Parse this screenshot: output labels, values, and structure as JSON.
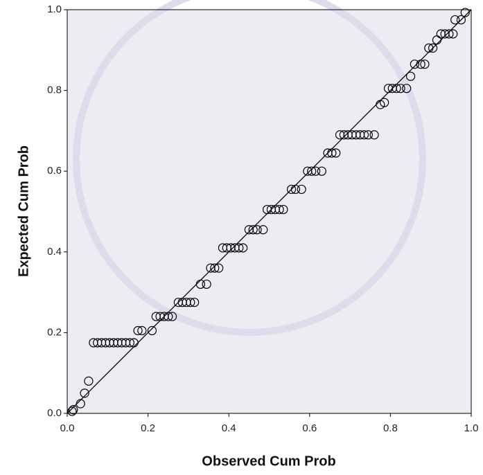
{
  "chart_data": {
    "type": "scatter",
    "x_label": "Observed Cum Prob",
    "y_label": "Expected Cum Prob",
    "x": [
      0.012,
      0.015,
      0.033,
      0.043,
      0.053,
      0.065,
      0.075,
      0.085,
      0.095,
      0.105,
      0.115,
      0.125,
      0.135,
      0.145,
      0.155,
      0.165,
      0.175,
      0.185,
      0.21,
      0.22,
      0.23,
      0.24,
      0.25,
      0.26,
      0.275,
      0.285,
      0.295,
      0.305,
      0.315,
      0.33,
      0.345,
      0.355,
      0.365,
      0.375,
      0.385,
      0.395,
      0.405,
      0.415,
      0.425,
      0.435,
      0.45,
      0.46,
      0.47,
      0.485,
      0.495,
      0.505,
      0.515,
      0.525,
      0.535,
      0.555,
      0.565,
      0.58,
      0.595,
      0.605,
      0.615,
      0.63,
      0.645,
      0.655,
      0.665,
      0.675,
      0.685,
      0.695,
      0.705,
      0.715,
      0.725,
      0.735,
      0.745,
      0.76,
      0.775,
      0.785,
      0.795,
      0.805,
      0.815,
      0.825,
      0.84,
      0.85,
      0.86,
      0.875,
      0.885,
      0.895,
      0.905,
      0.915,
      0.925,
      0.935,
      0.945,
      0.955,
      0.96,
      0.975,
      0.985
    ],
    "values": [
      0.005,
      0.009,
      0.024,
      0.05,
      0.08,
      0.175,
      0.175,
      0.175,
      0.175,
      0.175,
      0.175,
      0.175,
      0.175,
      0.175,
      0.175,
      0.175,
      0.205,
      0.205,
      0.205,
      0.24,
      0.24,
      0.24,
      0.24,
      0.24,
      0.275,
      0.275,
      0.275,
      0.275,
      0.275,
      0.32,
      0.32,
      0.36,
      0.36,
      0.36,
      0.41,
      0.41,
      0.41,
      0.41,
      0.41,
      0.41,
      0.455,
      0.455,
      0.455,
      0.455,
      0.505,
      0.505,
      0.505,
      0.505,
      0.505,
      0.555,
      0.555,
      0.555,
      0.6,
      0.6,
      0.6,
      0.6,
      0.645,
      0.645,
      0.645,
      0.69,
      0.69,
      0.69,
      0.69,
      0.69,
      0.69,
      0.69,
      0.69,
      0.69,
      0.765,
      0.77,
      0.805,
      0.805,
      0.805,
      0.805,
      0.805,
      0.835,
      0.865,
      0.865,
      0.865,
      0.905,
      0.905,
      0.925,
      0.94,
      0.94,
      0.94,
      0.94,
      0.975,
      0.975,
      0.993
    ],
    "color": "#000000",
    "reference_line": true,
    "xlim": [
      0,
      1
    ],
    "ylim": [
      0,
      1
    ],
    "xticks": [
      {
        "value": 0,
        "label": "0.0"
      },
      {
        "value": 0.2,
        "label": "0.2"
      },
      {
        "value": 0.4,
        "label": "0.4"
      },
      {
        "value": 0.6,
        "label": "0.6"
      },
      {
        "value": 0.8,
        "label": "0.8"
      },
      {
        "value": 1,
        "label": "1.0"
      }
    ],
    "yticks": [
      {
        "value": 0,
        "label": "0.0"
      },
      {
        "value": 0.2,
        "label": "0.2"
      },
      {
        "value": 0.4,
        "label": "0.4"
      },
      {
        "value": 0.6,
        "label": "0.6"
      },
      {
        "value": 0.8,
        "label": "0.8"
      },
      {
        "value": 1,
        "label": "1.0"
      }
    ]
  }
}
